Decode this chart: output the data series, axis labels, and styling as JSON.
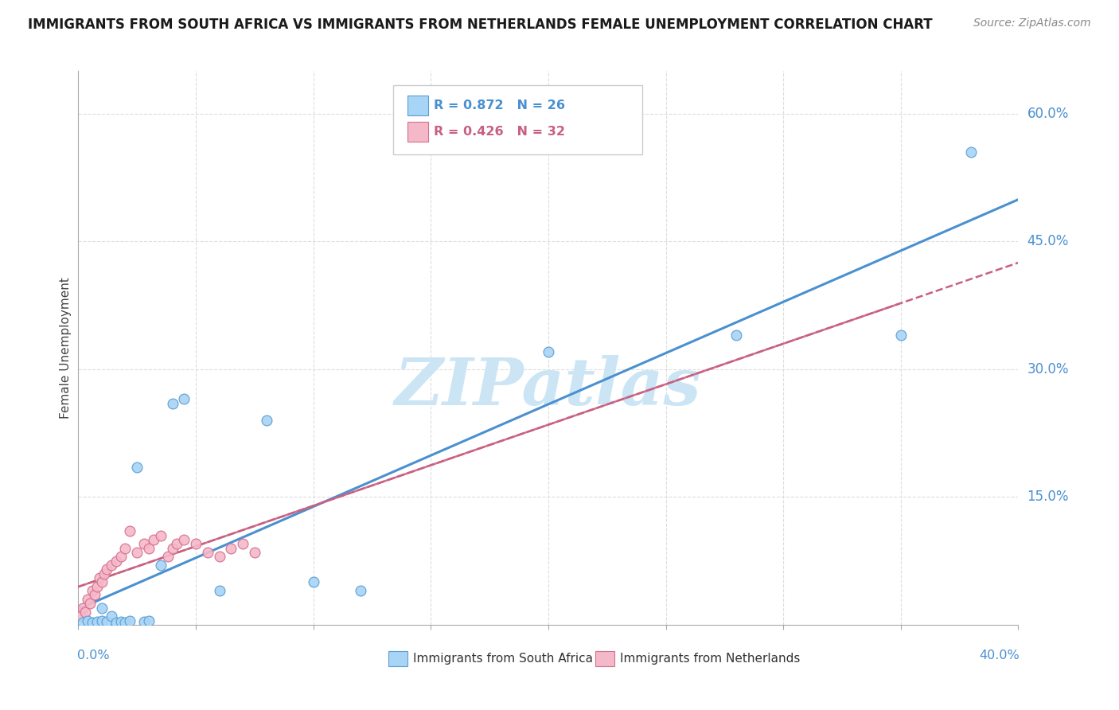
{
  "title": "IMMIGRANTS FROM SOUTH AFRICA VS IMMIGRANTS FROM NETHERLANDS FEMALE UNEMPLOYMENT CORRELATION CHART",
  "source": "Source: ZipAtlas.com",
  "ylabel": "Female Unemployment",
  "y_ticks": [
    0.15,
    0.3,
    0.45,
    0.6
  ],
  "y_tick_labels": [
    "15.0%",
    "30.0%",
    "45.0%",
    "60.0%"
  ],
  "x_range": [
    0.0,
    0.4
  ],
  "y_range": [
    0.0,
    0.65
  ],
  "series1_label": "Immigrants from South Africa",
  "series1_R": "0.872",
  "series1_N": "26",
  "series1_face_color": "#a8d4f5",
  "series1_edge_color": "#5a9fd4",
  "series1_line_color": "#4a90d0",
  "series2_label": "Immigrants from Netherlands",
  "series2_R": "0.426",
  "series2_N": "32",
  "series2_face_color": "#f5b8c8",
  "series2_edge_color": "#d47090",
  "series2_line_color": "#c86080",
  "grid_color": "#dddddd",
  "sa_x": [
    0.002,
    0.004,
    0.006,
    0.008,
    0.01,
    0.01,
    0.012,
    0.014,
    0.016,
    0.018,
    0.02,
    0.022,
    0.025,
    0.028,
    0.03,
    0.035,
    0.04,
    0.045,
    0.06,
    0.08,
    0.1,
    0.12,
    0.2,
    0.28,
    0.35,
    0.38
  ],
  "sa_y": [
    0.003,
    0.005,
    0.003,
    0.004,
    0.005,
    0.02,
    0.004,
    0.01,
    0.003,
    0.004,
    0.003,
    0.005,
    0.185,
    0.004,
    0.005,
    0.07,
    0.26,
    0.265,
    0.04,
    0.24,
    0.05,
    0.04,
    0.32,
    0.34,
    0.34,
    0.555
  ],
  "nl_x": [
    0.001,
    0.002,
    0.003,
    0.004,
    0.005,
    0.006,
    0.007,
    0.008,
    0.009,
    0.01,
    0.011,
    0.012,
    0.014,
    0.016,
    0.018,
    0.02,
    0.022,
    0.025,
    0.028,
    0.03,
    0.032,
    0.035,
    0.038,
    0.04,
    0.042,
    0.045,
    0.05,
    0.055,
    0.06,
    0.065,
    0.07,
    0.075
  ],
  "nl_y": [
    0.01,
    0.02,
    0.015,
    0.03,
    0.025,
    0.04,
    0.035,
    0.045,
    0.055,
    0.05,
    0.06,
    0.065,
    0.07,
    0.075,
    0.08,
    0.09,
    0.11,
    0.085,
    0.095,
    0.09,
    0.1,
    0.105,
    0.08,
    0.09,
    0.095,
    0.1,
    0.095,
    0.085,
    0.08,
    0.09,
    0.095,
    0.085
  ]
}
